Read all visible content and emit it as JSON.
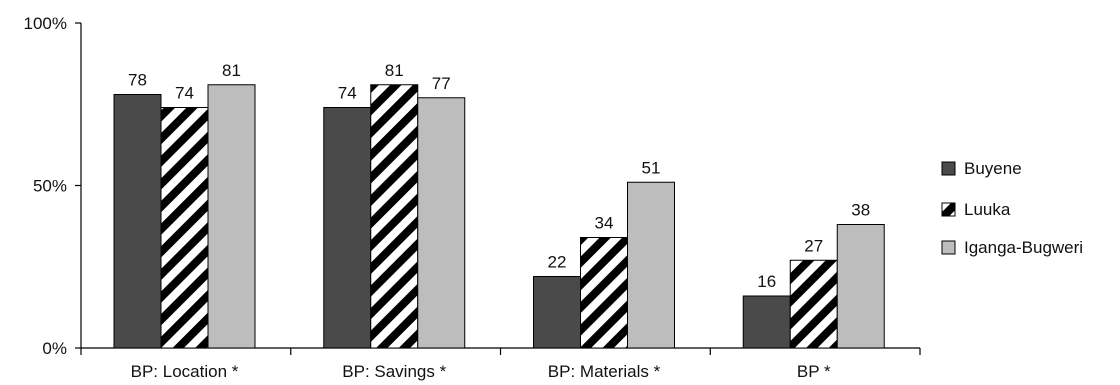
{
  "chart_data": {
    "type": "bar",
    "categories": [
      "BP: Location *",
      "BP: Savings *",
      "BP: Materials *",
      "BP *"
    ],
    "series": [
      {
        "name": "Buyene",
        "values": [
          78,
          74,
          22,
          16
        ],
        "fill": "solid",
        "color": "#4a4a4a"
      },
      {
        "name": "Luuka",
        "values": [
          74,
          81,
          34,
          27
        ],
        "fill": "diagonal-stripes",
        "color": "#000000"
      },
      {
        "name": "Iganga-Bugweri",
        "values": [
          81,
          77,
          51,
          38
        ],
        "fill": "solid",
        "color": "#bdbdbd"
      }
    ],
    "y_ticks": [
      "0%",
      "50%",
      "100%"
    ],
    "ylim": [
      0,
      100
    ],
    "grid": false,
    "legend": "right"
  }
}
